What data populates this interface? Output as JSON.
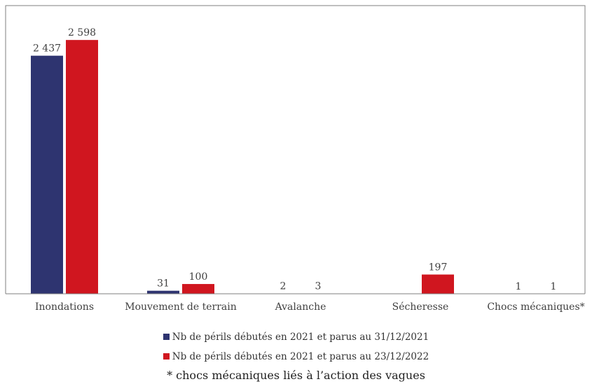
{
  "chart_data": {
    "type": "bar",
    "title": "",
    "xlabel": "",
    "ylabel": "",
    "ylim": [
      0,
      2950
    ],
    "grid": false,
    "legend_position": "bottom",
    "categories": [
      "Inondations",
      "Mouvement de terrain",
      "Avalanche",
      "Sécheresse",
      "Chocs mécaniques*"
    ],
    "series": [
      {
        "name": "Nb de périls débutés en 2021 et parus au 31/12/2021",
        "color": "#2E3470",
        "values": [
          2437,
          31,
          2,
          null,
          1
        ],
        "value_labels": [
          "2 437",
          "31",
          "2",
          "",
          "1"
        ]
      },
      {
        "name": "Nb de périls débutés en 2021 et parus au 23/12/2022",
        "color": "#D0161F",
        "values": [
          2598,
          100,
          3,
          197,
          1
        ],
        "value_labels": [
          "2 598",
          "100",
          "3",
          "197",
          "1"
        ]
      }
    ],
    "footnote": "* chocs mécaniques liés à l’action des vagues"
  }
}
